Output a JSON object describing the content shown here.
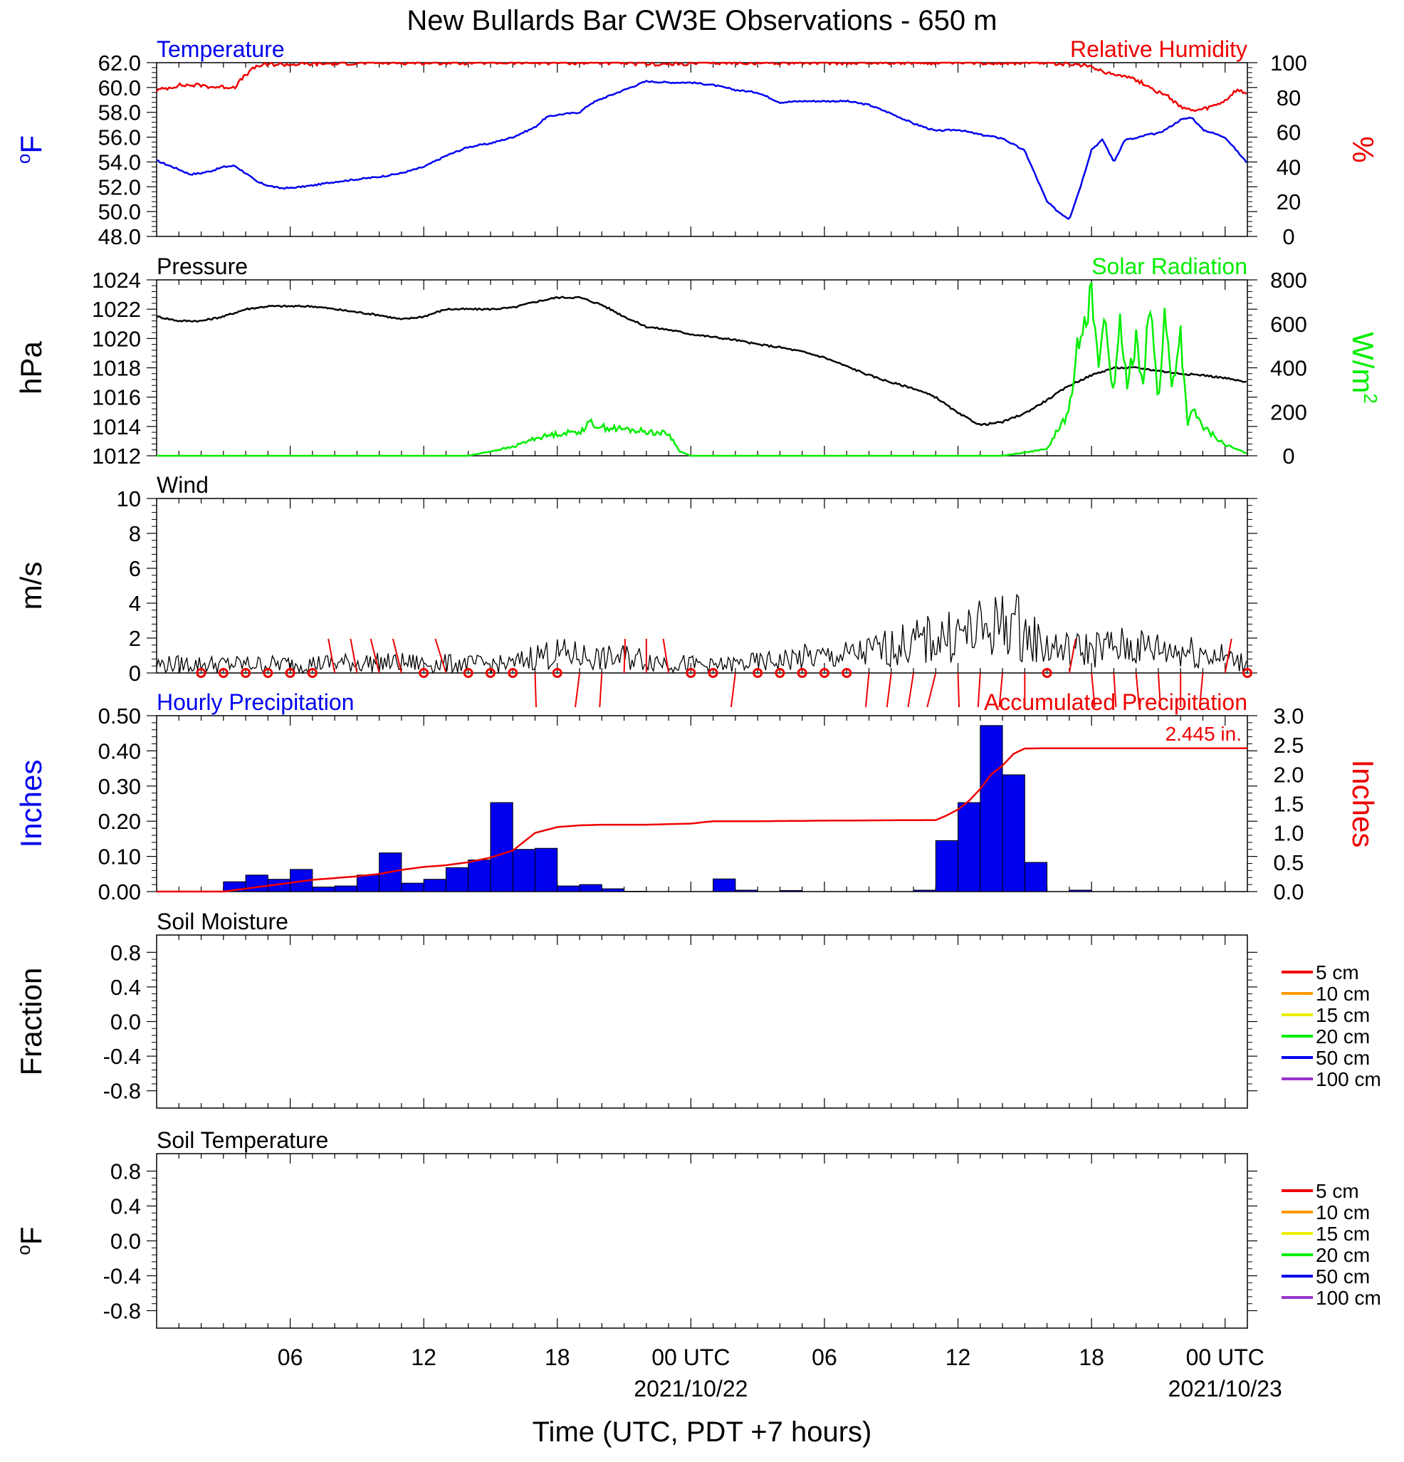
{
  "title": "New Bullards Bar CW3E Observations - 650 m",
  "xaxis": {
    "label": "Time (UTC, PDT +7 hours)",
    "ticks": [
      {
        "hour": 6,
        "label": "06",
        "date": ""
      },
      {
        "hour": 12,
        "label": "12",
        "date": ""
      },
      {
        "hour": 18,
        "label": "18",
        "date": ""
      },
      {
        "hour": 24,
        "label": "00 UTC",
        "date": "2021/10/22"
      },
      {
        "hour": 30,
        "label": "06",
        "date": ""
      },
      {
        "hour": 36,
        "label": "12",
        "date": ""
      },
      {
        "hour": 42,
        "label": "18",
        "date": ""
      },
      {
        "hour": 48,
        "label": "00 UTC",
        "date": "2021/10/23"
      }
    ],
    "range_hours": [
      0,
      49
    ]
  },
  "colors": {
    "blue": "#0000ee",
    "red": "#ee0000",
    "green": "#00ee00",
    "black": "#000000",
    "orange": "#ff9900",
    "yellow": "#eeee00",
    "purple": "#9933cc"
  },
  "chart_data": [
    {
      "type": "line",
      "id": "temp_rh",
      "left_label": "Temperature",
      "right_label": "Relative Humidity",
      "left_unit": "oF",
      "right_unit": "%",
      "left_ticks": [
        "62.0",
        "60.0",
        "58.0",
        "56.0",
        "54.0",
        "52.0",
        "50.0",
        "48.0"
      ],
      "right_ticks": [
        "100",
        "80",
        "60",
        "40",
        "20",
        "0"
      ],
      "ylim_left": [
        48,
        62
      ],
      "ylim_right": [
        0,
        100
      ],
      "series": [
        {
          "axis": "left",
          "color": "#0000ee",
          "x": [
            0,
            1,
            1.5,
            2,
            2.5,
            3,
            3.5,
            4,
            4.5,
            5,
            5.5,
            6,
            7,
            8,
            9,
            10,
            11,
            12,
            13,
            14,
            15,
            16,
            17,
            17.5,
            18,
            19,
            19.5,
            20,
            21,
            22,
            23,
            24,
            25,
            26,
            27,
            28,
            29,
            30,
            31,
            32,
            33,
            34,
            35,
            36,
            37,
            38,
            39,
            40,
            40.5,
            41,
            41.5,
            42,
            42.5,
            43,
            43.5,
            44,
            44.5,
            45,
            45.5,
            46,
            46.5,
            47,
            48,
            49
          ],
          "y": [
            54.1,
            53.4,
            53.0,
            53.1,
            53.3,
            53.6,
            53.7,
            53.1,
            52.4,
            52.1,
            51.9,
            51.9,
            52.1,
            52.4,
            52.6,
            52.8,
            53.1,
            53.6,
            54.5,
            55.2,
            55.5,
            56.0,
            56.8,
            57.6,
            57.8,
            58.0,
            58.7,
            59.1,
            59.8,
            60.5,
            60.4,
            60.4,
            60.2,
            59.8,
            59.6,
            58.8,
            58.9,
            58.9,
            58.9,
            58.6,
            57.9,
            57.1,
            56.5,
            56.6,
            56.2,
            55.9,
            54.9,
            50.8,
            50.0,
            49.4,
            52.0,
            55.0,
            55.8,
            54.0,
            55.8,
            55.9,
            56.2,
            56.3,
            56.8,
            57.4,
            57.6,
            56.6,
            56.0,
            53.9
          ]
        },
        {
          "axis": "right",
          "color": "#ee0000",
          "x": [
            0,
            1,
            2,
            2.5,
            3,
            3.5,
            4,
            4.5,
            5,
            6,
            10,
            15,
            20,
            23,
            25,
            30,
            35,
            40,
            41,
            42,
            42.5,
            43,
            43.5,
            44,
            44.5,
            45,
            45.5,
            46,
            46.5,
            47,
            47.5,
            48,
            48.5,
            49
          ],
          "y": [
            84,
            87,
            87,
            86,
            86,
            86,
            93,
            98,
            99,
            99,
            100,
            100,
            100,
            99,
            100,
            100,
            100,
            100,
            99,
            98,
            95,
            93,
            93,
            90,
            87,
            83,
            80,
            75,
            72,
            73,
            75,
            78,
            84,
            82
          ]
        }
      ]
    },
    {
      "type": "line",
      "id": "press_solar",
      "left_label": "Pressure",
      "right_label": "Solar Radiation",
      "left_unit": "hPa",
      "right_unit": "W/m",
      "right_unit_sup": "2",
      "left_ticks": [
        "1024",
        "1022",
        "1020",
        "1018",
        "1016",
        "1014",
        "1012"
      ],
      "right_ticks": [
        "800",
        "600",
        "400",
        "200",
        "0"
      ],
      "ylim_left": [
        1012,
        1024
      ],
      "ylim_right": [
        0,
        800
      ],
      "series": [
        {
          "axis": "left",
          "color": "#000000",
          "x": [
            0,
            1,
            2,
            3,
            4,
            5,
            6,
            7,
            8,
            9,
            10,
            11,
            12,
            13,
            14,
            15,
            16,
            17,
            18,
            19,
            20,
            21,
            22,
            23,
            24,
            25,
            26,
            27,
            28,
            29,
            30,
            31,
            32,
            33,
            34,
            35,
            36,
            37,
            38,
            39,
            40,
            41,
            42,
            43,
            44,
            45,
            46,
            47,
            48,
            49
          ],
          "y": [
            1021.5,
            1021.2,
            1021.2,
            1021.5,
            1022.0,
            1022.2,
            1022.2,
            1022.2,
            1022.0,
            1021.8,
            1021.6,
            1021.3,
            1021.5,
            1022.0,
            1022.0,
            1022.0,
            1022.1,
            1022.5,
            1022.8,
            1022.8,
            1022.3,
            1021.5,
            1020.8,
            1020.6,
            1020.3,
            1020.1,
            1019.9,
            1019.6,
            1019.4,
            1019.1,
            1018.7,
            1018.1,
            1017.5,
            1017.0,
            1016.6,
            1016.0,
            1014.9,
            1014.1,
            1014.3,
            1014.9,
            1015.8,
            1016.8,
            1017.5,
            1018.0,
            1018.0,
            1017.8,
            1017.6,
            1017.5,
            1017.3,
            1017.0
          ]
        },
        {
          "axis": "right",
          "color": "#00ee00",
          "x": [
            0,
            10,
            13,
            14,
            15,
            16,
            17,
            18,
            19,
            19.5,
            20,
            21,
            22,
            23,
            23.5,
            24,
            30,
            38,
            40,
            40.5,
            41,
            41.5,
            42,
            42.3,
            42.6,
            43,
            43.3,
            43.6,
            44,
            44.3,
            44.6,
            45,
            45.3,
            45.6,
            46,
            46.3,
            46.6,
            47,
            47.5,
            48,
            49
          ],
          "y": [
            0,
            0,
            0,
            0,
            20,
            40,
            80,
            100,
            110,
            150,
            130,
            120,
            110,
            100,
            20,
            0,
            0,
            0,
            30,
            120,
            200,
            600,
            730,
            400,
            650,
            260,
            600,
            300,
            550,
            330,
            700,
            250,
            650,
            300,
            560,
            150,
            200,
            130,
            90,
            50,
            10
          ]
        }
      ]
    },
    {
      "type": "line",
      "id": "wind",
      "left_label": "Wind",
      "left_unit": "m/s",
      "left_ticks": [
        "10",
        "8",
        "6",
        "4",
        "2",
        "0"
      ],
      "ylim_left": [
        0,
        10
      ],
      "series": [
        {
          "axis": "left",
          "color": "#000000",
          "x": [
            0,
            5,
            10,
            15,
            16,
            17,
            18,
            19,
            20,
            21,
            22,
            23,
            24,
            25,
            26,
            27,
            28,
            29,
            30,
            31,
            32,
            33,
            34,
            35,
            36,
            37,
            38,
            38.5,
            39,
            40,
            41,
            42,
            43,
            44,
            45,
            46,
            47,
            48,
            49
          ],
          "y": [
            0.5,
            0.5,
            0.6,
            0.5,
            0.5,
            1.0,
            1.1,
            1.0,
            0.8,
            0.9,
            0.8,
            0.6,
            0.5,
            0.4,
            0.5,
            0.6,
            0.7,
            0.9,
            0.9,
            1.0,
            1.2,
            1.5,
            1.7,
            2.0,
            2.2,
            2.4,
            2.8,
            3.0,
            2.2,
            1.5,
            1.3,
            1.4,
            1.5,
            1.5,
            1.4,
            1.3,
            1.2,
            0.9,
            0.5
          ]
        }
      ],
      "barbs": [
        {
          "hour": 2,
          "type": "calm"
        },
        {
          "hour": 3,
          "type": "calm"
        },
        {
          "hour": 4,
          "type": "calm"
        },
        {
          "hour": 5,
          "type": "calm"
        },
        {
          "hour": 6,
          "type": "calm"
        },
        {
          "hour": 7,
          "type": "calm"
        },
        {
          "hour": 8,
          "type": "barb",
          "dir": "up",
          "tilt": -6
        },
        {
          "hour": 9,
          "type": "barb",
          "dir": "up",
          "tilt": -6
        },
        {
          "hour": 10,
          "type": "barb",
          "dir": "up",
          "tilt": -8
        },
        {
          "hour": 11,
          "type": "barb",
          "dir": "up",
          "tilt": -8
        },
        {
          "hour": 12,
          "type": "calm"
        },
        {
          "hour": 13,
          "type": "barb",
          "dir": "up",
          "tilt": -10
        },
        {
          "hour": 14,
          "type": "calm"
        },
        {
          "hour": 15,
          "type": "calm"
        },
        {
          "hour": 16,
          "type": "calm"
        },
        {
          "hour": 17,
          "type": "barb",
          "dir": "down",
          "tilt": 1
        },
        {
          "hour": 18,
          "type": "calm"
        },
        {
          "hour": 19,
          "type": "barb",
          "dir": "down",
          "tilt": -4
        },
        {
          "hour": 20,
          "type": "barb",
          "dir": "down",
          "tilt": -2
        },
        {
          "hour": 21,
          "type": "barb",
          "dir": "up",
          "tilt": 1
        },
        {
          "hour": 22,
          "type": "barb",
          "dir": "up",
          "tilt": 0
        },
        {
          "hour": 23,
          "type": "barb",
          "dir": "up",
          "tilt": -5
        },
        {
          "hour": 24,
          "type": "calm"
        },
        {
          "hour": 25,
          "type": "calm"
        },
        {
          "hour": 26,
          "type": "barb",
          "dir": "down",
          "tilt": -4
        },
        {
          "hour": 27,
          "type": "calm"
        },
        {
          "hour": 28,
          "type": "calm"
        },
        {
          "hour": 29,
          "type": "calm"
        },
        {
          "hour": 30,
          "type": "calm"
        },
        {
          "hour": 31,
          "type": "calm"
        },
        {
          "hour": 32,
          "type": "barb",
          "dir": "down",
          "tilt": -3
        },
        {
          "hour": 33,
          "type": "barb",
          "dir": "down",
          "tilt": -4
        },
        {
          "hour": 34,
          "type": "barb",
          "dir": "down",
          "tilt": -5
        },
        {
          "hour": 35,
          "type": "barb",
          "dir": "down",
          "tilt": -8
        },
        {
          "hour": 36,
          "type": "barb",
          "dir": "down",
          "tilt": 1
        },
        {
          "hour": 37,
          "type": "barb",
          "dir": "down",
          "tilt": -2
        },
        {
          "hour": 38,
          "type": "barb",
          "dir": "down",
          "tilt": -3
        },
        {
          "hour": 39,
          "type": "barb",
          "dir": "down",
          "tilt": 0
        },
        {
          "hour": 40,
          "type": "calm"
        },
        {
          "hour": 41,
          "type": "barb",
          "dir": "up",
          "tilt": 6
        },
        {
          "hour": 42,
          "type": "barb",
          "dir": "down",
          "tilt": 3
        },
        {
          "hour": 43,
          "type": "barb",
          "dir": "down",
          "tilt": 2
        },
        {
          "hour": 44,
          "type": "barb",
          "dir": "down",
          "tilt": 3
        },
        {
          "hour": 45,
          "type": "barb",
          "dir": "down",
          "tilt": 2
        },
        {
          "hour": 46,
          "type": "barb",
          "dir": "down",
          "tilt": 0
        },
        {
          "hour": 47,
          "type": "barb",
          "dir": "down",
          "tilt": -3
        },
        {
          "hour": 48,
          "type": "barb",
          "dir": "up",
          "tilt": 6
        },
        {
          "hour": 49,
          "type": "calm"
        }
      ]
    },
    {
      "type": "bar",
      "id": "precip",
      "left_label": "Hourly Precipitation",
      "right_label": "Accumulated Precipitation",
      "left_unit": "Inches",
      "right_unit": "Inches",
      "left_ticks": [
        "0.50",
        "0.40",
        "0.30",
        "0.20",
        "0.10",
        "0.00"
      ],
      "right_ticks": [
        "3.0",
        "2.5",
        "2.0",
        "1.5",
        "1.0",
        "0.5",
        "0.0"
      ],
      "ylim_left": [
        0,
        0.5
      ],
      "ylim_right": [
        0,
        3.0
      ],
      "annotation": "2.445 in.",
      "hours": [
        3,
        4,
        5,
        6,
        7,
        8,
        9,
        10,
        11,
        12,
        13,
        14,
        15,
        16,
        17,
        18,
        19,
        20,
        21,
        25,
        26,
        28,
        34,
        35,
        36,
        37,
        38,
        39,
        41
      ],
      "values": [
        0.028,
        0.047,
        0.035,
        0.063,
        0.013,
        0.016,
        0.047,
        0.11,
        0.024,
        0.035,
        0.068,
        0.09,
        0.253,
        0.12,
        0.123,
        0.016,
        0.02,
        0.008,
        0.001,
        0.036,
        0.004,
        0.003,
        0.004,
        0.145,
        0.253,
        0.472,
        0.332,
        0.083,
        0.004
      ],
      "accum": {
        "x": [
          0,
          3,
          4,
          5,
          6,
          7,
          8,
          9,
          10,
          11,
          12,
          13,
          14,
          15,
          16,
          16.5,
          17,
          17.5,
          18,
          19,
          20,
          21,
          22,
          23,
          24,
          25,
          26,
          27,
          30,
          35,
          35.5,
          36,
          36.5,
          37,
          37.5,
          38,
          38.5,
          39,
          40,
          49
        ],
        "y": [
          0,
          0,
          0.05,
          0.1,
          0.15,
          0.2,
          0.23,
          0.26,
          0.3,
          0.37,
          0.42,
          0.45,
          0.5,
          0.58,
          0.7,
          0.85,
          1.0,
          1.05,
          1.1,
          1.13,
          1.14,
          1.14,
          1.14,
          1.15,
          1.16,
          1.2,
          1.2,
          1.2,
          1.21,
          1.22,
          1.3,
          1.4,
          1.55,
          1.75,
          2.0,
          2.15,
          2.35,
          2.44,
          2.445,
          2.445
        ]
      }
    },
    {
      "type": "line",
      "id": "soil_moisture",
      "left_label": "Soil Moisture",
      "left_unit": "Fraction",
      "left_ticks": [
        "0.8",
        "0.4",
        "0.0",
        "-0.4",
        "-0.8"
      ],
      "ylim_left": [
        -1,
        1
      ],
      "series": [],
      "legend": [
        {
          "name": "5 cm",
          "color": "#ee0000"
        },
        {
          "name": "10 cm",
          "color": "#ff9900"
        },
        {
          "name": "15 cm",
          "color": "#eeee00"
        },
        {
          "name": "20 cm",
          "color": "#00ee00"
        },
        {
          "name": "50 cm",
          "color": "#0000ee"
        },
        {
          "name": "100 cm",
          "color": "#9933cc"
        }
      ]
    },
    {
      "type": "line",
      "id": "soil_temp",
      "left_label": "Soil Temperature",
      "left_unit": "oF",
      "left_ticks": [
        "0.8",
        "0.4",
        "0.0",
        "-0.4",
        "-0.8"
      ],
      "ylim_left": [
        -1,
        1
      ],
      "series": [],
      "legend": [
        {
          "name": "5 cm",
          "color": "#ee0000"
        },
        {
          "name": "10 cm",
          "color": "#ff9900"
        },
        {
          "name": "15 cm",
          "color": "#eeee00"
        },
        {
          "name": "20 cm",
          "color": "#00ee00"
        },
        {
          "name": "50 cm",
          "color": "#0000ee"
        },
        {
          "name": "100 cm",
          "color": "#9933cc"
        }
      ]
    }
  ]
}
